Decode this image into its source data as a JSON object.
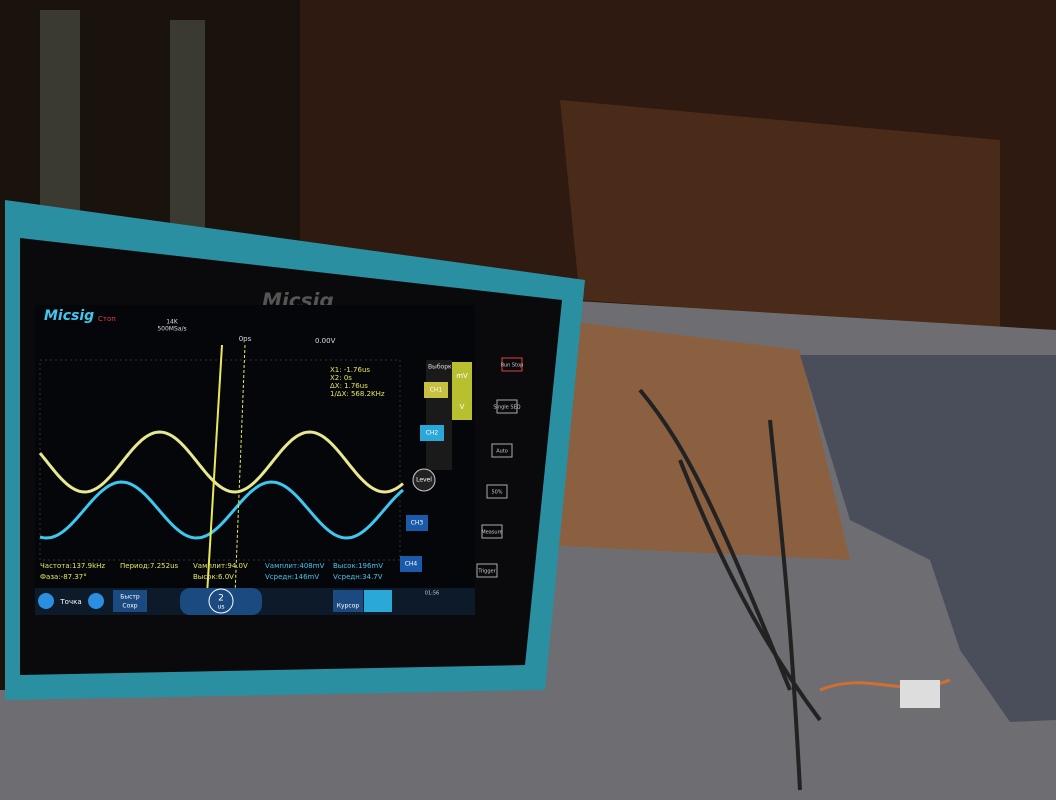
{
  "screen": {
    "brand": "Micsig",
    "status": "Стоп",
    "memory": "14K",
    "sample_rate": "500MSa/s",
    "time_offset": "0ps",
    "trigger_level": "0.00V",
    "cursor_readout": [
      "X1: -1.76us",
      "X2: 0s",
      "ΔX: 1.76us",
      "1/ΔX: 568.2KHz"
    ],
    "menu": "Выборка",
    "units": [
      "mV",
      "V"
    ],
    "channels": [
      "CH1",
      "CH2",
      "CH3",
      "CH4"
    ],
    "level": "Level",
    "measurements": [
      "Частота:137.9kHz",
      "Фаза:-87.37°",
      "Период:7.252us",
      "Vамплит:94.0V",
      "Высок:6.0V",
      "Vамплит:408mV",
      "Vсредн:146mV",
      "Высок:196mV",
      "Vсредн:34.7V"
    ],
    "bottom": {
      "point": "Точка",
      "quick_save": [
        "Быстр",
        "Сохр"
      ],
      "timebase": [
        "2",
        "us"
      ],
      "cursor": "Курсор",
      "clock": "01:56"
    }
  },
  "bezel": {
    "brand": "Micsig",
    "buttons": [
      "Run Stop",
      "Single SEQ",
      "Auto",
      "50%",
      "Measure",
      "Trigger"
    ]
  }
}
